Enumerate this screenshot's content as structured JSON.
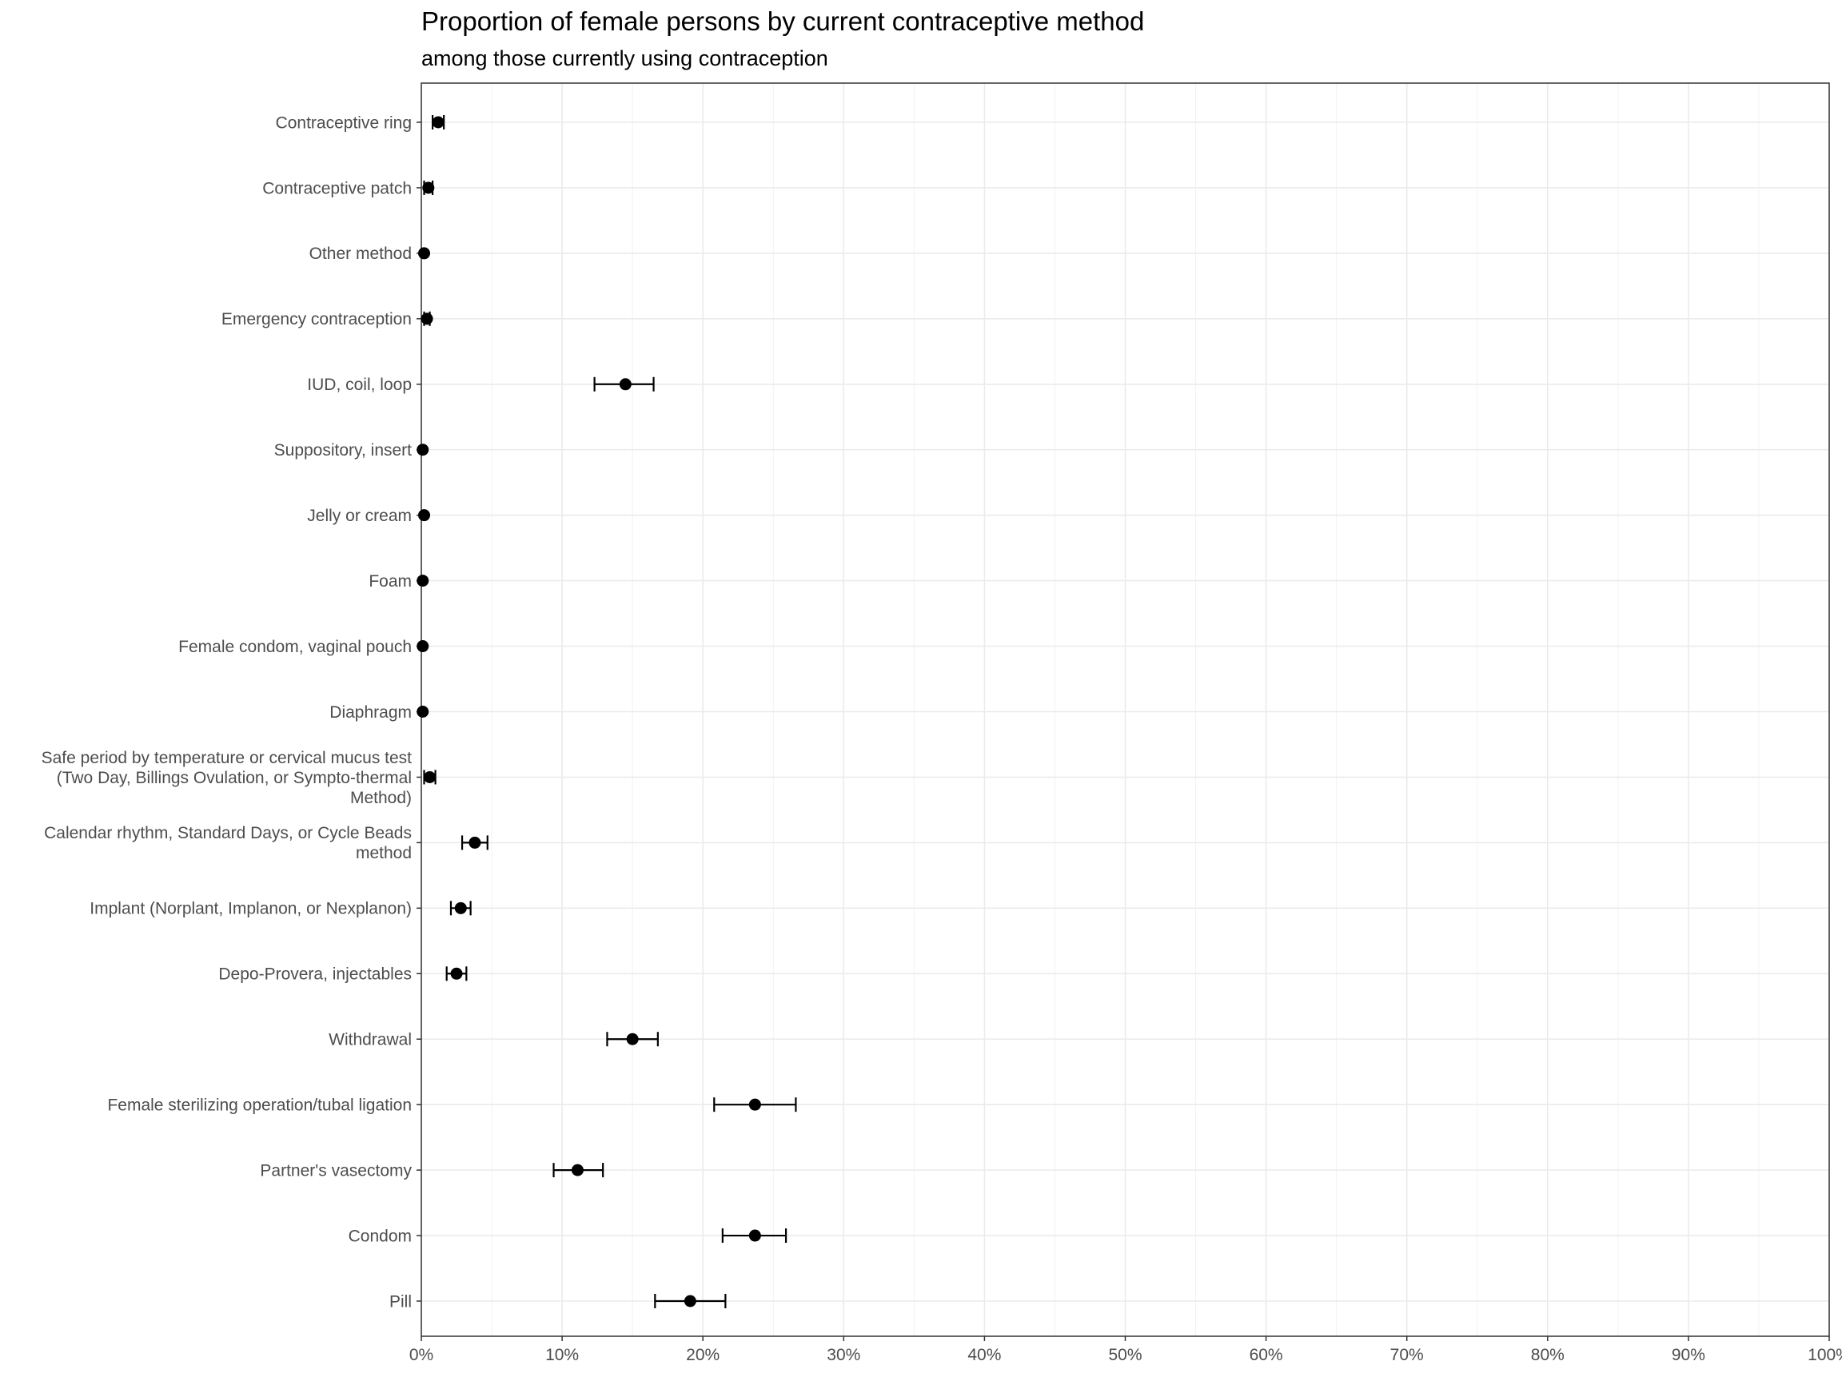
{
  "chart_data": {
    "type": "scatter",
    "title": "Proportion of female persons by current contraceptive method",
    "subtitle": "among those currently using contraception",
    "xlabel": "",
    "ylabel": "",
    "xlim": [
      0,
      1
    ],
    "x_ticks": [
      0,
      0.1,
      0.2,
      0.3,
      0.4,
      0.5,
      0.6,
      0.7,
      0.8,
      0.9,
      1.0
    ],
    "x_tick_labels": [
      "0%",
      "10%",
      "20%",
      "30%",
      "40%",
      "50%",
      "60%",
      "70%",
      "80%",
      "90%",
      "100%"
    ],
    "grid": true,
    "legend": "none",
    "marker_color": "#000000",
    "errorbar_color": "#000000",
    "categories": [
      "Contraceptive ring",
      "Contraceptive patch",
      "Other method",
      "Emergency contraception",
      "IUD, coil, loop",
      "Suppository, insert",
      "Jelly or cream",
      "Foam",
      "Female condom, vaginal pouch",
      "Diaphragm",
      "Safe period by temperature or cervical mucus test (Two Day, Billings Ovulation, or Sympto-thermal Method)",
      "Calendar rhythm, Standard Days, or Cycle Beads method",
      "Implant (Norplant, Implanon, or Nexplanon)",
      "Depo-Provera, injectables",
      "Withdrawal",
      "Female sterilizing operation/tubal ligation",
      "Partner's vasectomy",
      "Condom",
      "Pill"
    ],
    "category_label_lines": [
      [
        "Contraceptive ring"
      ],
      [
        "Contraceptive patch"
      ],
      [
        "Other method"
      ],
      [
        "Emergency contraception"
      ],
      [
        "IUD, coil, loop"
      ],
      [
        "Suppository, insert"
      ],
      [
        "Jelly or cream"
      ],
      [
        "Foam"
      ],
      [
        "Female condom, vaginal pouch"
      ],
      [
        "Diaphragm"
      ],
      [
        "Safe period by temperature or cervical mucus test",
        "(Two Day, Billings Ovulation, or Sympto-thermal",
        "Method)"
      ],
      [
        "Calendar rhythm, Standard Days, or Cycle Beads",
        "method"
      ],
      [
        "Implant (Norplant, Implanon, or Nexplanon)"
      ],
      [
        "Depo-Provera, injectables"
      ],
      [
        "Withdrawal"
      ],
      [
        "Female sterilizing operation/tubal ligation"
      ],
      [
        "Partner's vasectomy"
      ],
      [
        "Condom"
      ],
      [
        "Pill"
      ]
    ],
    "values": [
      0.012,
      0.005,
      0.002,
      0.004,
      0.145,
      0.001,
      0.002,
      0.001,
      0.001,
      0.001,
      0.006,
      0.038,
      0.028,
      0.025,
      0.15,
      0.237,
      0.111,
      0.237,
      0.191
    ],
    "lower": [
      0.008,
      0.002,
      null,
      0.002,
      0.123,
      null,
      null,
      null,
      null,
      null,
      0.002,
      0.029,
      0.021,
      0.018,
      0.132,
      0.208,
      0.094,
      0.214,
      0.166
    ],
    "upper": [
      0.016,
      0.008,
      null,
      0.006,
      0.165,
      null,
      null,
      null,
      null,
      null,
      0.01,
      0.047,
      0.035,
      0.032,
      0.168,
      0.266,
      0.129,
      0.259,
      0.216
    ]
  }
}
